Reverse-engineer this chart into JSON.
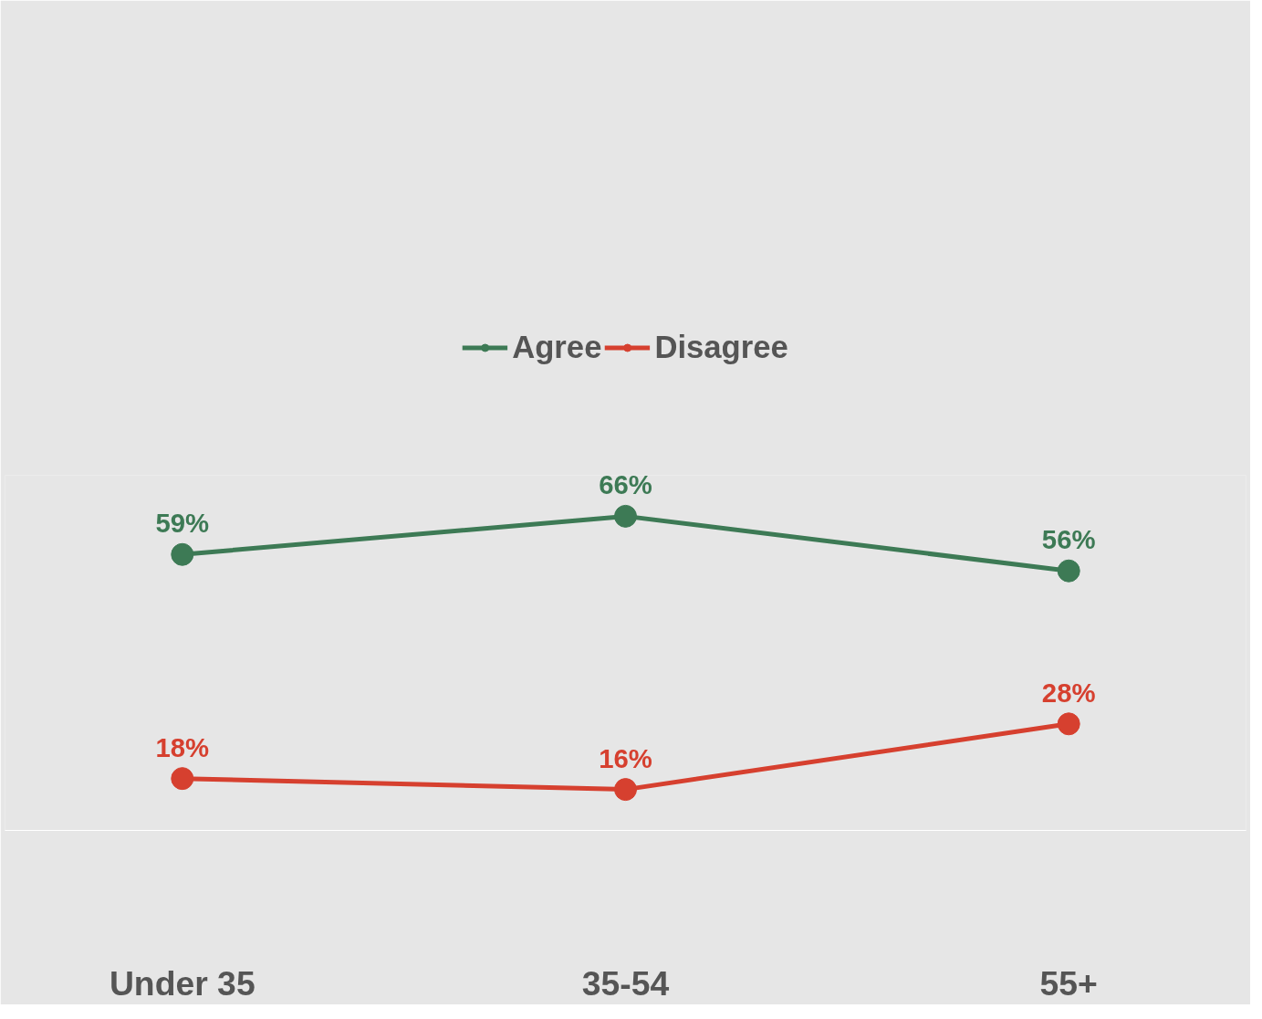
{
  "chart_data": {
    "type": "line",
    "categories": [
      "Under 35",
      "35-54",
      "55+"
    ],
    "series": [
      {
        "name": "Agree",
        "color": "#3d7a55",
        "values": [
          59,
          66,
          56
        ],
        "value_labels": [
          "59%",
          "66%",
          "56%"
        ]
      },
      {
        "name": "Disagree",
        "color": "#d6402f",
        "values": [
          18,
          16,
          28
        ],
        "value_labels": [
          "18%",
          "16%",
          "28%"
        ]
      }
    ],
    "tick_labels": "x",
    "legend": "top",
    "marker": "circle",
    "line_style": "solid"
  }
}
